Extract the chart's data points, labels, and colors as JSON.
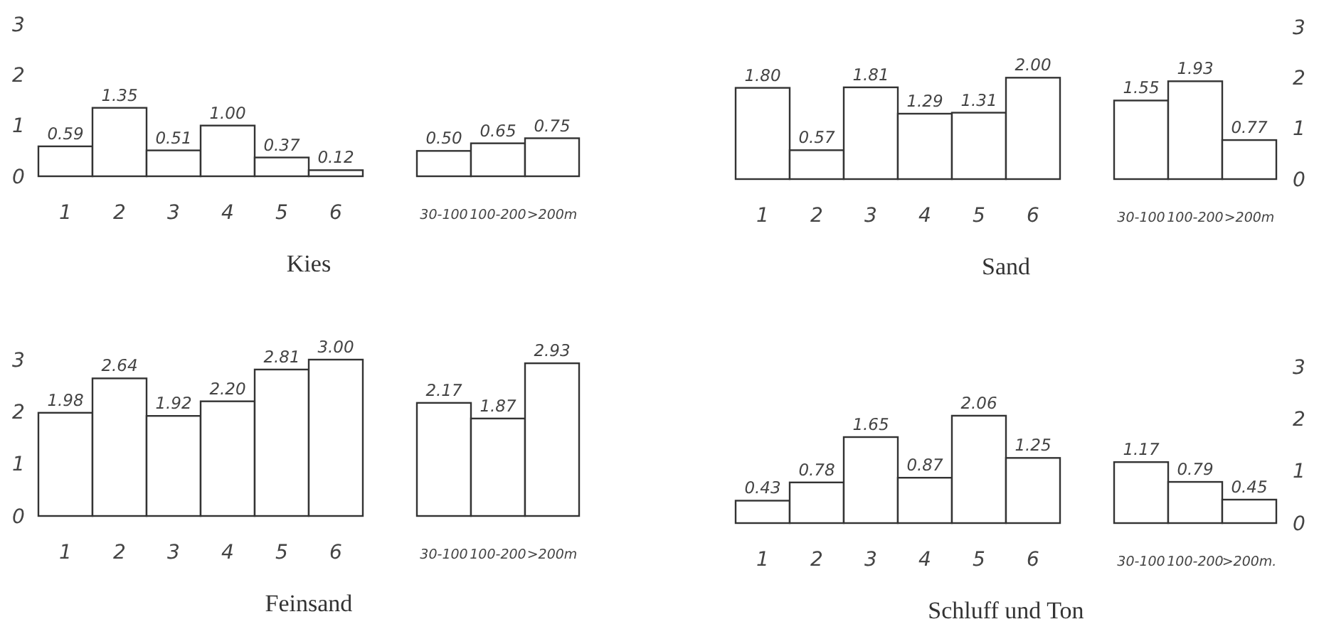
{
  "chart_data": [
    {
      "type": "bar",
      "title": "Kies",
      "categories": [
        "1",
        "2",
        "3",
        "4",
        "5",
        "6",
        null,
        "30-100",
        "100-200",
        ">200m"
      ],
      "series": [
        {
          "color": "#ffffff",
          "values": [
            0.59,
            1.35,
            0.51,
            1.0,
            0.37,
            0.12,
            null,
            0.5,
            0.65,
            0.75
          ]
        }
      ],
      "value_labels": [
        "0.59",
        "1.35",
        "0.51",
        "1.00",
        "0.37",
        "0.12",
        null,
        "0.50",
        "0.65",
        "0.75"
      ],
      "ylim": [
        0,
        3
      ],
      "yticks": [
        0,
        1,
        2,
        3
      ]
    },
    {
      "type": "bar",
      "title": "Sand",
      "categories": [
        "1",
        "2",
        "3",
        "4",
        "5",
        "6",
        null,
        "30-100",
        "100-200",
        ">200m"
      ],
      "series": [
        {
          "color": "#ffffff",
          "axis": "y2",
          "values": [
            1.8,
            0.57,
            1.81,
            1.29,
            1.31,
            2.0,
            null,
            1.55,
            1.93,
            0.77
          ]
        }
      ],
      "value_labels": [
        "1.80",
        "0.57",
        "1.81",
        "1.29",
        "1.31",
        "2.00",
        null,
        "1.55",
        "1.93",
        "0.77"
      ],
      "y2lim": [
        0,
        3
      ],
      "y2ticks": [
        0,
        1,
        2,
        3
      ]
    },
    {
      "type": "bar",
      "title": "Feinsand",
      "categories": [
        "1",
        "2",
        "3",
        "4",
        "5",
        "6",
        null,
        "30-100",
        "100-200",
        ">200m"
      ],
      "series": [
        {
          "color": "#ffffff",
          "values": [
            1.98,
            2.64,
            1.92,
            2.2,
            2.81,
            3.0,
            null,
            2.17,
            1.87,
            2.93
          ]
        }
      ],
      "value_labels": [
        "1.98",
        "2.64",
        "1.92",
        "2.20",
        "2.81",
        "3.00",
        null,
        "2.17",
        "1.87",
        "2.93"
      ],
      "ylim": [
        0,
        3
      ],
      "yticks": [
        0,
        1,
        2,
        3
      ]
    },
    {
      "type": "bar",
      "title": "Schluff und Ton",
      "categories": [
        "1",
        "2",
        "3",
        "4",
        "5",
        "6",
        null,
        "30-100",
        "100-200",
        ">200m."
      ],
      "series": [
        {
          "color": "#ffffff",
          "axis": "y2",
          "values": [
            0.43,
            0.78,
            1.65,
            0.87,
            2.06,
            1.25,
            null,
            1.17,
            0.79,
            0.45
          ]
        }
      ],
      "value_labels": [
        "0.43",
        "0.78",
        "1.65",
        "0.87",
        "2.06",
        "1.25",
        null,
        "1.17",
        "0.79",
        "0.45"
      ],
      "y2lim": [
        0,
        3
      ],
      "y2ticks": [
        0,
        1,
        2,
        3
      ]
    }
  ]
}
